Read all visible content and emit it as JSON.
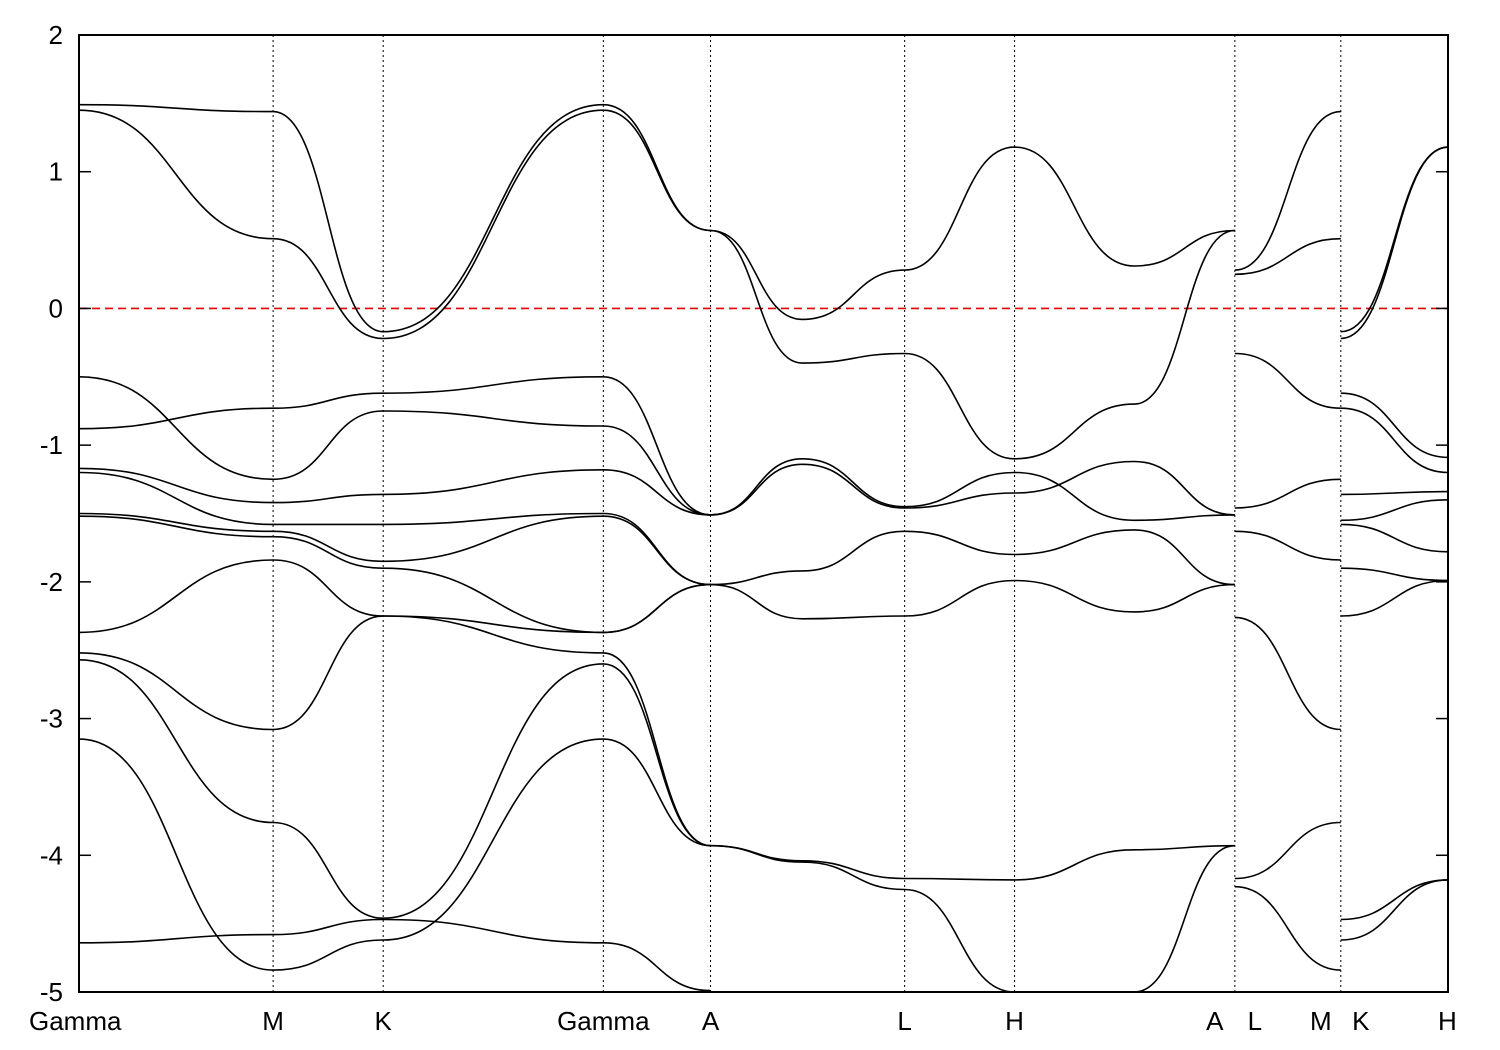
{
  "chart_data": {
    "type": "line",
    "title": "",
    "xlabel": "",
    "ylabel": "",
    "ylim": [
      -5,
      2
    ],
    "grid": false,
    "legend": "none",
    "y_ticks": [
      {
        "value": 2,
        "label": "2"
      },
      {
        "value": 1,
        "label": "1"
      },
      {
        "value": 0,
        "label": "0"
      },
      {
        "value": -1,
        "label": "-1"
      },
      {
        "value": -2,
        "label": "-2"
      },
      {
        "value": -3,
        "label": "-3"
      },
      {
        "value": -4,
        "label": "-4"
      },
      {
        "value": -5,
        "label": "-5"
      }
    ],
    "k_points": [
      {
        "label": "Gamma",
        "k": 0.0
      },
      {
        "label": "M",
        "k": 0.1418
      },
      {
        "label": "K",
        "k": 0.2222
      },
      {
        "label": "Gamma",
        "k": 0.383
      },
      {
        "label": "A",
        "k": 0.4613
      },
      {
        "label": "L",
        "k": 0.6031
      },
      {
        "label": "H",
        "k": 0.6834
      },
      {
        "label": "A",
        "k": 0.8443
      },
      {
        "label": "L",
        "k": 0.8443
      },
      {
        "label": "M",
        "k": 0.9217
      },
      {
        "label": "K",
        "k": 0.9217
      },
      {
        "label": "H",
        "k": 1.0
      }
    ],
    "vertical_lines_at": [
      0.1418,
      0.2222,
      0.383,
      0.4613,
      0.6031,
      0.6834,
      0.8443,
      0.9217
    ],
    "fermi_level": {
      "value": 0,
      "color": "#e00000"
    },
    "line_color": "#000000",
    "segments": [
      {
        "k": [
          0.0,
          0.1418,
          0.2222,
          0.383,
          0.4613
        ],
        "series": [
          {
            "values": [
              1.49,
              1.44,
              -0.17,
              1.49,
              0.57
            ]
          },
          {
            "values": [
              1.45,
              0.51,
              -0.22,
              1.45,
              0.57
            ]
          },
          {
            "values": [
              -0.88,
              -0.73,
              -0.62,
              -0.5,
              -1.51
            ]
          },
          {
            "values": [
              -0.5,
              -1.25,
              -0.75,
              -0.86,
              -1.51
            ]
          },
          {
            "values": [
              -1.17,
              -1.42,
              -1.36,
              -1.18,
              -1.51
            ]
          },
          {
            "values": [
              -1.2,
              -1.58,
              -1.58,
              -1.5,
              -2.02
            ]
          },
          {
            "values": [
              -1.5,
              -1.63,
              -1.85,
              -1.52,
              -2.02
            ]
          },
          {
            "values": [
              -1.52,
              -1.67,
              -1.9,
              -2.37,
              -2.02
            ]
          },
          {
            "values": [
              -2.37,
              -1.84,
              -2.25,
              -2.37,
              -2.02
            ]
          },
          {
            "values": [
              -2.52,
              -3.08,
              -2.25,
              -2.52,
              -3.93
            ]
          },
          {
            "values": [
              -2.57,
              -3.76,
              -4.46,
              -2.6,
              -3.93
            ]
          },
          {
            "values": [
              -3.15,
              -4.84,
              -4.62,
              -3.15,
              -3.93
            ]
          },
          {
            "values": [
              -4.64,
              -4.58,
              -4.47,
              -4.64,
              -4.99
            ]
          }
        ]
      },
      {
        "k": [
          0.4613,
          0.5284,
          0.6031,
          0.6834,
          0.7708,
          0.8443
        ],
        "series": [
          {
            "values": [
              0.57,
              -0.08,
              0.28,
              1.18,
              0.31,
              0.57
            ]
          },
          {
            "values": [
              0.57,
              -0.4,
              -0.33,
              -1.1,
              -0.7,
              0.57
            ]
          },
          {
            "values": [
              -1.51,
              -1.1,
              -1.45,
              -1.2,
              -1.55,
              -1.51
            ]
          },
          {
            "values": [
              -1.51,
              -1.14,
              -1.46,
              -1.35,
              -1.12,
              -1.51
            ]
          },
          {
            "values": [
              -2.02,
              -1.92,
              -1.63,
              -1.8,
              -1.62,
              -2.02
            ]
          },
          {
            "values": [
              -2.02,
              -2.27,
              -2.25,
              -1.99,
              -2.22,
              -2.02
            ]
          },
          {
            "values": [
              -3.93,
              -4.04,
              -4.17,
              -4.18,
              -3.96,
              -3.93
            ]
          },
          {
            "values": [
              -3.93,
              -4.05,
              -4.25,
              -5.0,
              -5.0,
              -3.93
            ]
          }
        ]
      },
      {
        "k": [
          0.8443,
          0.9217
        ],
        "series": [
          {
            "values": [
              0.28,
              1.44
            ]
          },
          {
            "values": [
              0.25,
              0.51
            ]
          },
          {
            "values": [
              -0.33,
              -0.73
            ]
          },
          {
            "values": [
              -1.46,
              -1.25
            ]
          },
          {
            "values": [
              -1.63,
              -1.84
            ]
          },
          {
            "values": [
              -2.26,
              -3.08
            ]
          },
          {
            "values": [
              -4.17,
              -3.76
            ]
          },
          {
            "values": [
              -4.23,
              -4.84
            ]
          }
        ]
      },
      {
        "k": [
          0.9217,
          1.0
        ],
        "series": [
          {
            "values": [
              -0.17,
              1.18
            ]
          },
          {
            "values": [
              -0.22,
              1.18
            ]
          },
          {
            "values": [
              -0.62,
              -1.09
            ]
          },
          {
            "values": [
              -0.73,
              -1.2
            ]
          },
          {
            "values": [
              -1.36,
              -1.34
            ]
          },
          {
            "values": [
              -1.55,
              -1.4
            ]
          },
          {
            "values": [
              -1.58,
              -1.78
            ]
          },
          {
            "values": [
              -1.9,
              -1.99
            ]
          },
          {
            "values": [
              -2.25,
              -1.99
            ]
          },
          {
            "values": [
              -4.47,
              -4.18
            ]
          },
          {
            "values": [
              -4.62,
              -4.18
            ]
          }
        ]
      }
    ]
  }
}
